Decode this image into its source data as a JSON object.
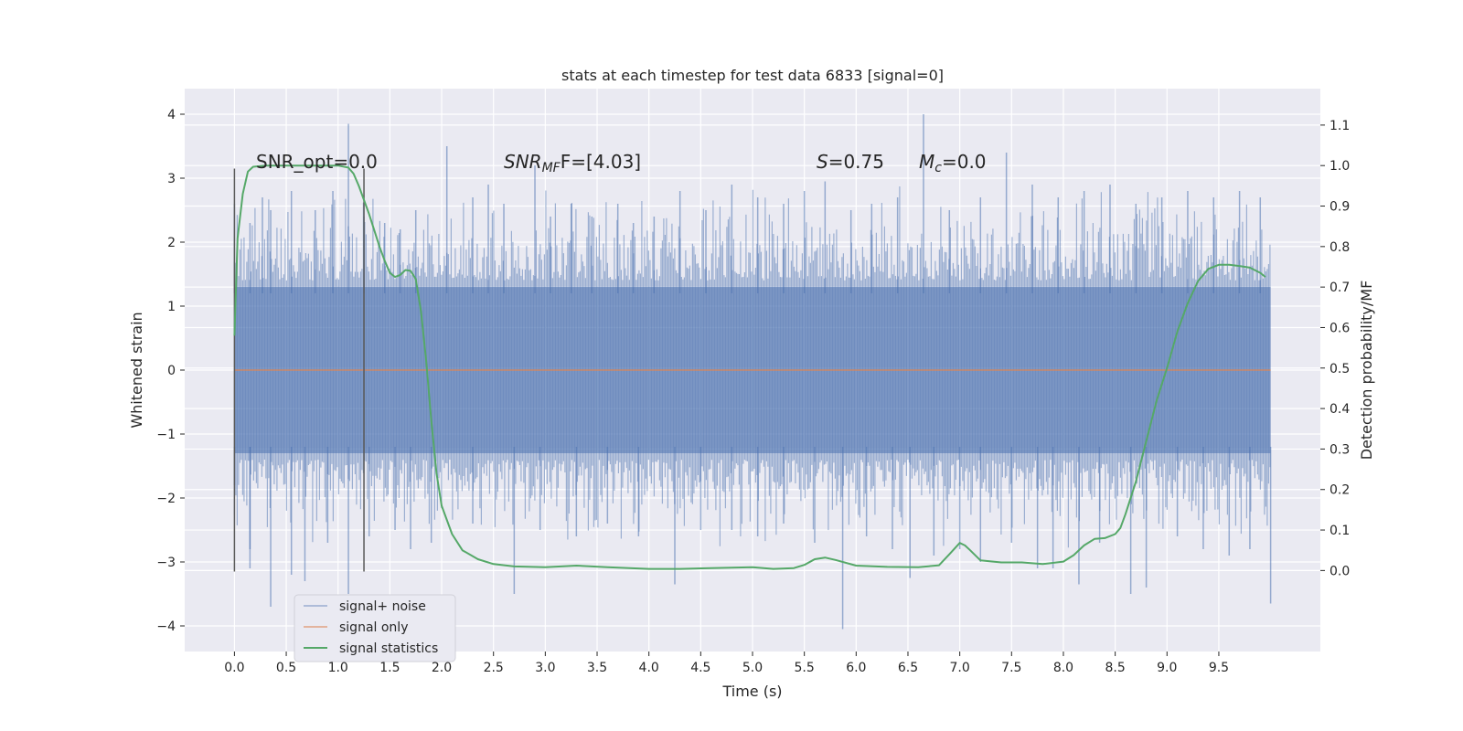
{
  "chart_data": {
    "type": "line",
    "title": "stats at each timestep for test data 6833 [signal=0]",
    "xlabel": "Time (s)",
    "ylabel": "Whitened strain",
    "ylabel_right": "Detection probability/MF",
    "xlim": [
      -0.48,
      10.48
    ],
    "ylim": [
      -4.4,
      4.4
    ],
    "ylim_right": [
      -0.2,
      1.19
    ],
    "x_ticks": [
      "0.0",
      "0.5",
      "1.0",
      "1.5",
      "2.0",
      "2.5",
      "3.0",
      "3.5",
      "4.0",
      "4.5",
      "5.0",
      "5.5",
      "6.0",
      "6.5",
      "7.0",
      "7.5",
      "8.0",
      "8.5",
      "9.0",
      "9.5"
    ],
    "y_ticks": [
      "−4",
      "−3",
      "−2",
      "−1",
      "0",
      "1",
      "2",
      "3",
      "4"
    ],
    "y_ticks_right": [
      "0.0",
      "0.1",
      "0.2",
      "0.3",
      "0.4",
      "0.5",
      "0.6",
      "0.7",
      "0.8",
      "0.9",
      "1.0",
      "1.1"
    ],
    "grid": true,
    "legend_position": "lower-left",
    "colors": {
      "noise": "#4c72b0",
      "signal": "#dd8452",
      "stats": "#55a868",
      "background": "#eaeaf2",
      "vline": "#595959"
    },
    "annotations": {
      "snr_opt": "SNR_opt=0.0",
      "snr_mf_prefix": "SNR",
      "snr_mf_sub": "MF",
      "snr_mf_suffix": "F=[4.03]",
      "s_label": "S",
      "s_value": "=0.75",
      "mc_label": "M",
      "mc_sub": "c",
      "mc_value": "=0.0"
    },
    "vlines_x": [
      0.0,
      1.25
    ],
    "vlines_yrange": [
      -3.15,
      3.15
    ],
    "series": [
      {
        "name": "signal+ noise",
        "x_range": [
          0.0,
          10.0
        ],
        "band_y": [
          -1.3,
          1.3
        ],
        "peaks": [
          [
            0.0,
            2.6
          ],
          [
            0.15,
            2.3
          ],
          [
            0.27,
            2.7
          ],
          [
            0.35,
            2.5
          ],
          [
            0.55,
            2.8
          ],
          [
            0.78,
            2.5
          ],
          [
            0.95,
            2.8
          ],
          [
            1.1,
            3.85
          ],
          [
            1.25,
            2.4
          ],
          [
            1.45,
            2.3
          ],
          [
            1.6,
            2.2
          ],
          [
            1.75,
            2.5
          ],
          [
            2.05,
            3.5
          ],
          [
            2.3,
            2.7
          ],
          [
            2.45,
            2.9
          ],
          [
            2.6,
            2.6
          ],
          [
            2.9,
            3.2
          ],
          [
            3.05,
            2.4
          ],
          [
            3.25,
            2.6
          ],
          [
            3.45,
            2.4
          ],
          [
            3.7,
            2.6
          ],
          [
            3.85,
            2.3
          ],
          [
            4.05,
            2.4
          ],
          [
            4.3,
            2.8
          ],
          [
            4.55,
            2.5
          ],
          [
            4.8,
            2.9
          ],
          [
            5.05,
            2.7
          ],
          [
            5.3,
            2.6
          ],
          [
            5.5,
            2.8
          ],
          [
            5.7,
            2.95
          ],
          [
            5.95,
            2.5
          ],
          [
            6.15,
            2.6
          ],
          [
            6.4,
            2.7
          ],
          [
            6.65,
            4.0
          ],
          [
            6.9,
            2.5
          ],
          [
            7.2,
            2.7
          ],
          [
            7.45,
            3.4
          ],
          [
            7.7,
            2.9
          ],
          [
            7.95,
            2.7
          ],
          [
            8.2,
            2.8
          ],
          [
            8.45,
            2.9
          ],
          [
            8.7,
            2.6
          ],
          [
            8.95,
            2.7
          ],
          [
            9.2,
            2.8
          ],
          [
            9.45,
            2.7
          ],
          [
            9.7,
            2.8
          ],
          [
            9.9,
            2.7
          ],
          [
            10.0,
            1.2
          ]
        ],
        "troughs": [
          [
            0.0,
            -1.8
          ],
          [
            0.15,
            -2.8
          ],
          [
            0.15,
            -3.1
          ],
          [
            0.35,
            -3.7
          ],
          [
            0.55,
            -3.2
          ],
          [
            0.68,
            -3.3
          ],
          [
            0.9,
            -2.7
          ],
          [
            1.1,
            -3.5
          ],
          [
            1.3,
            -2.6
          ],
          [
            1.55,
            -2.5
          ],
          [
            1.7,
            -2.8
          ],
          [
            1.9,
            -2.7
          ],
          [
            2.3,
            -2.4
          ],
          [
            2.7,
            -3.5
          ],
          [
            2.95,
            -2.5
          ],
          [
            3.3,
            -2.6
          ],
          [
            3.6,
            -2.4
          ],
          [
            3.9,
            -2.6
          ],
          [
            4.25,
            -3.35
          ],
          [
            4.5,
            -2.5
          ],
          [
            4.8,
            -2.5
          ],
          [
            5.05,
            -2.6
          ],
          [
            5.3,
            -2.4
          ],
          [
            5.6,
            -2.7
          ],
          [
            5.87,
            -4.05
          ],
          [
            6.1,
            -2.6
          ],
          [
            6.35,
            -2.8
          ],
          [
            6.52,
            -3.25
          ],
          [
            6.75,
            -2.9
          ],
          [
            7.0,
            -2.8
          ],
          [
            7.2,
            -3.0
          ],
          [
            7.5,
            -2.7
          ],
          [
            7.75,
            -3.1
          ],
          [
            7.9,
            -3.1
          ],
          [
            8.15,
            -3.35
          ],
          [
            8.35,
            -2.7
          ],
          [
            8.65,
            -3.5
          ],
          [
            8.8,
            -3.4
          ],
          [
            9.1,
            -2.6
          ],
          [
            9.35,
            -2.8
          ],
          [
            9.6,
            -2.9
          ],
          [
            9.8,
            -2.8
          ],
          [
            10.0,
            -3.65
          ]
        ]
      },
      {
        "name": "signal only",
        "x": [
          0.0,
          10.0
        ],
        "y": [
          0.0,
          0.0
        ]
      },
      {
        "name": "signal statistics",
        "axis": "right",
        "x": [
          0.0,
          0.03,
          0.08,
          0.13,
          0.18,
          0.3,
          0.5,
          0.8,
          1.0,
          1.1,
          1.15,
          1.2,
          1.3,
          1.4,
          1.45,
          1.5,
          1.55,
          1.6,
          1.65,
          1.7,
          1.75,
          1.8,
          1.85,
          1.9,
          1.95,
          2.0,
          2.1,
          2.2,
          2.35,
          2.5,
          2.7,
          3.0,
          3.3,
          3.6,
          4.0,
          4.3,
          4.6,
          5.0,
          5.2,
          5.4,
          5.5,
          5.6,
          5.7,
          5.8,
          6.0,
          6.3,
          6.6,
          6.8,
          6.9,
          7.0,
          7.05,
          7.1,
          7.2,
          7.4,
          7.6,
          7.8,
          8.0,
          8.1,
          8.2,
          8.3,
          8.4,
          8.5,
          8.55,
          8.6,
          8.7,
          8.8,
          8.9,
          9.0,
          9.1,
          9.2,
          9.3,
          9.4,
          9.5,
          9.6,
          9.7,
          9.8,
          9.9,
          9.95
        ],
        "y": [
          0.58,
          0.82,
          0.93,
          0.985,
          0.997,
          1.0,
          1.0,
          1.0,
          1.0,
          0.995,
          0.98,
          0.95,
          0.88,
          0.8,
          0.765,
          0.735,
          0.725,
          0.73,
          0.742,
          0.74,
          0.72,
          0.64,
          0.52,
          0.37,
          0.24,
          0.16,
          0.09,
          0.05,
          0.028,
          0.016,
          0.01,
          0.008,
          0.012,
          0.008,
          0.004,
          0.004,
          0.006,
          0.008,
          0.004,
          0.006,
          0.014,
          0.028,
          0.032,
          0.026,
          0.012,
          0.009,
          0.008,
          0.013,
          0.04,
          0.068,
          0.062,
          0.05,
          0.025,
          0.02,
          0.02,
          0.016,
          0.022,
          0.038,
          0.062,
          0.078,
          0.08,
          0.09,
          0.105,
          0.14,
          0.22,
          0.32,
          0.42,
          0.5,
          0.59,
          0.66,
          0.715,
          0.745,
          0.755,
          0.755,
          0.752,
          0.748,
          0.735,
          0.725
        ]
      }
    ]
  }
}
